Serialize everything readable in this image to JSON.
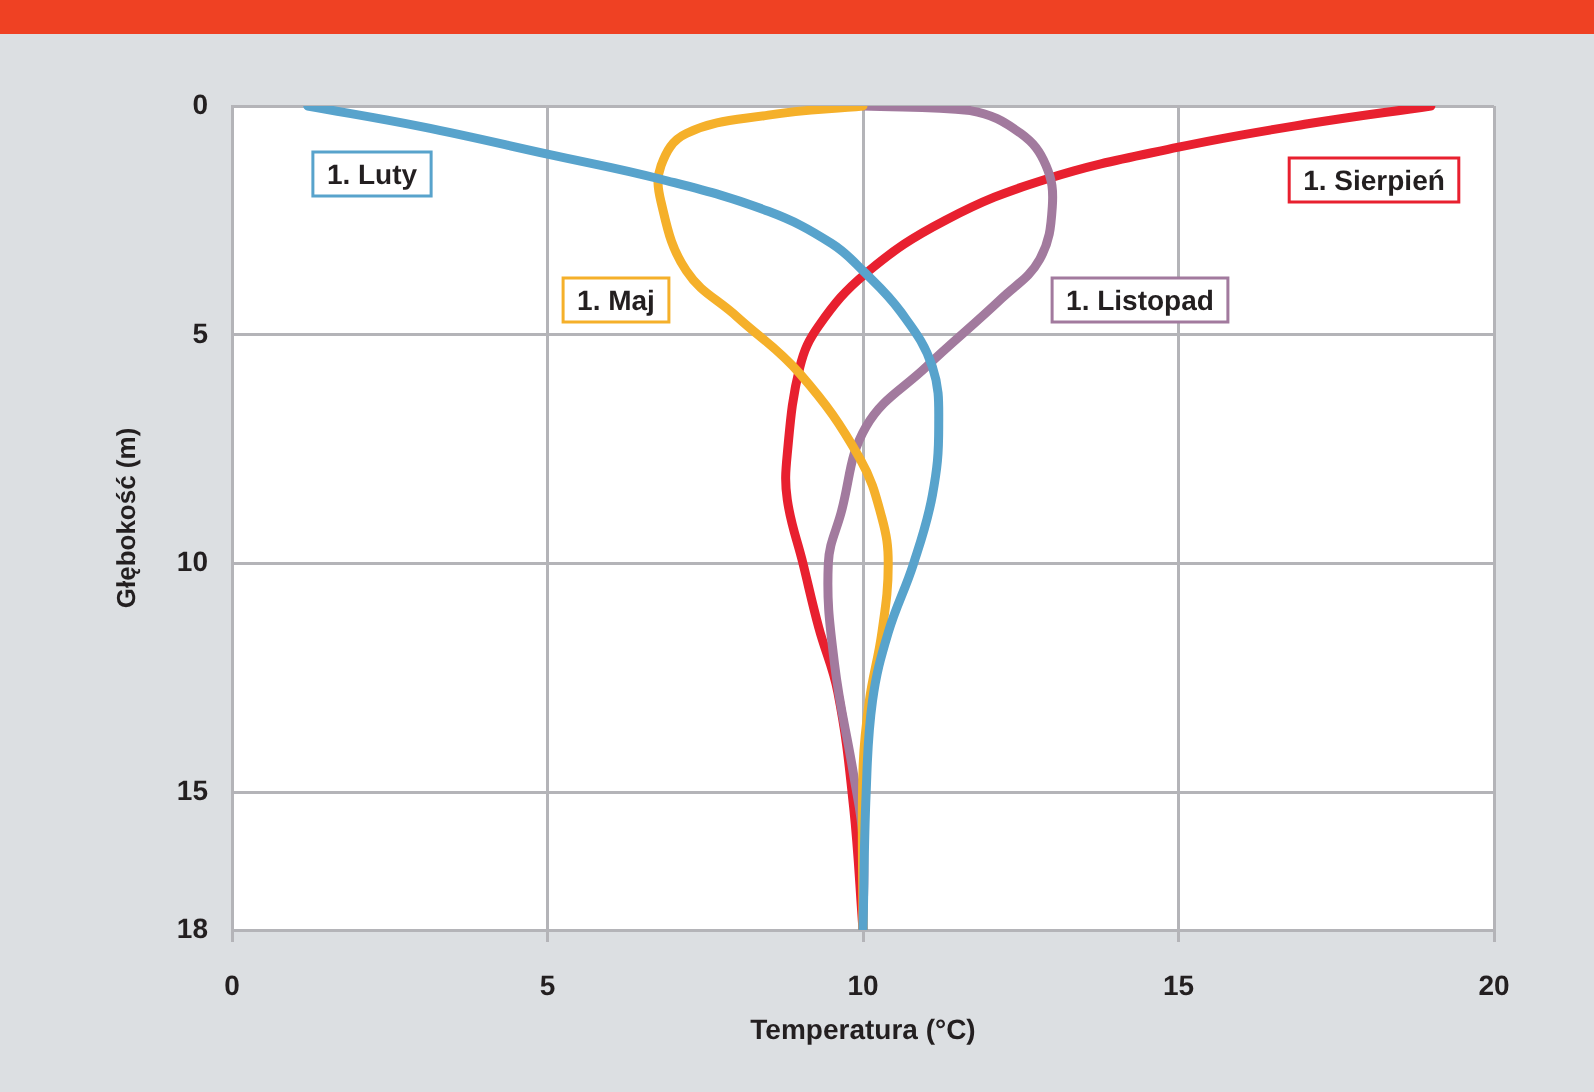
{
  "chart_data": {
    "type": "line",
    "xlabel": "Temperatura (°C)",
    "ylabel": "Głębokość (m)",
    "xlim": [
      0,
      20
    ],
    "xticks": [
      0,
      5,
      10,
      15,
      20
    ],
    "ylim": [
      18,
      0
    ],
    "yticks": [
      0,
      5,
      10,
      15,
      18
    ],
    "grid": true,
    "marker": "none",
    "legend": false,
    "series": [
      {
        "name": "1. Luty",
        "color": "#58a3cc",
        "x": [
          1.2,
          3,
          5,
          6.8,
          8.5,
          9.5,
          10,
          10.6,
          11.1,
          11.2,
          11.1,
          10.8,
          10.4,
          10.15,
          10.05,
          10
        ],
        "values": [
          0,
          0.45,
          1.05,
          1.6,
          2.3,
          3,
          3.6,
          4.5,
          5.7,
          7,
          8.5,
          10,
          11.5,
          13,
          15,
          18
        ]
      },
      {
        "name": "1. Maj",
        "color": "#f5b02a",
        "x": [
          10,
          8.5,
          7.2,
          6.8,
          6.8,
          7.2,
          8,
          9,
          9.95,
          10.3,
          10.4,
          10.3,
          10.1,
          10,
          10
        ],
        "values": [
          0,
          0.2,
          0.6,
          1.3,
          2.1,
          3.6,
          4.6,
          5.85,
          7.7,
          9,
          10,
          11.5,
          13,
          14.5,
          18
        ]
      },
      {
        "name": "1. Listopad",
        "color": "#a27a9e",
        "x": [
          10,
          11.7,
          12.5,
          12.9,
          13,
          12.8,
          12.2,
          11,
          10.05,
          9.65,
          9.45,
          9.55,
          9.85,
          10,
          10
        ],
        "values": [
          0,
          0.1,
          0.6,
          1.3,
          2.2,
          3.35,
          4.2,
          5.7,
          7,
          8.9,
          10,
          12.2,
          14.6,
          16,
          18
        ]
      },
      {
        "name": "1. Sierpień",
        "color": "#e8202f",
        "x": [
          19,
          17,
          15,
          12.9,
          11.3,
          10.05,
          9.3,
          9,
          8.8,
          8.8,
          9.05,
          9.3,
          9.6,
          9.85,
          10
        ],
        "values": [
          0,
          0.4,
          0.9,
          1.6,
          2.5,
          3.65,
          4.8,
          5.7,
          7.6,
          8.6,
          10,
          11.4,
          12.8,
          15.3,
          18
        ]
      }
    ]
  }
}
